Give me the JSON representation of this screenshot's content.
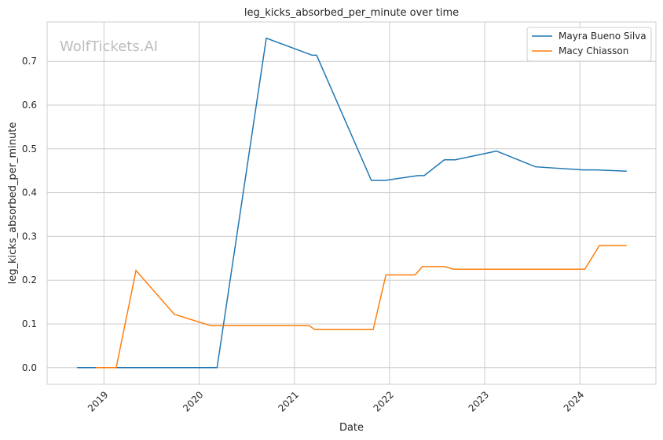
{
  "chart_data": {
    "type": "line",
    "title": "leg_kicks_absorbed_per_minute over time",
    "xlabel": "Date",
    "ylabel": "leg_kicks_absorbed_per_minute",
    "watermark": "WolfTickets.AI",
    "grid": true,
    "legend_position": "top-right",
    "x_range": [
      "2018-05-28",
      "2024-10-19"
    ],
    "ylim": [
      -0.038,
      0.79
    ],
    "x_ticks": [
      {
        "date": "2019-01-01",
        "label": "2019"
      },
      {
        "date": "2020-01-01",
        "label": "2020"
      },
      {
        "date": "2021-01-01",
        "label": "2021"
      },
      {
        "date": "2022-01-01",
        "label": "2022"
      },
      {
        "date": "2023-01-01",
        "label": "2023"
      },
      {
        "date": "2024-01-01",
        "label": "2024"
      }
    ],
    "y_ticks": [
      {
        "value": 0.0,
        "label": "0.0"
      },
      {
        "value": 0.1,
        "label": "0.1"
      },
      {
        "value": 0.2,
        "label": "0.2"
      },
      {
        "value": 0.3,
        "label": "0.3"
      },
      {
        "value": 0.4,
        "label": "0.4"
      },
      {
        "value": 0.5,
        "label": "0.5"
      },
      {
        "value": 0.6,
        "label": "0.6"
      },
      {
        "value": 0.7,
        "label": "0.7"
      }
    ],
    "series": [
      {
        "name": "Mayra Bueno Silva",
        "color": "#1f77b4",
        "points": [
          [
            "2018-09-20",
            0.0
          ],
          [
            "2020-03-10",
            0.0
          ],
          [
            "2020-09-15",
            0.753
          ],
          [
            "2021-03-10",
            0.714
          ],
          [
            "2021-03-27",
            0.714
          ],
          [
            "2021-10-23",
            0.428
          ],
          [
            "2021-12-15",
            0.428
          ],
          [
            "2022-04-20",
            0.439
          ],
          [
            "2022-05-14",
            0.439
          ],
          [
            "2022-07-30",
            0.475
          ],
          [
            "2022-09-10",
            0.475
          ],
          [
            "2023-02-15",
            0.495
          ],
          [
            "2023-07-15",
            0.459
          ],
          [
            "2024-01-13",
            0.452
          ],
          [
            "2024-03-01",
            0.452
          ],
          [
            "2024-06-29",
            0.449
          ]
        ]
      },
      {
        "name": "Macy Chiasson",
        "color": "#ff7f0e",
        "points": [
          [
            "2018-11-30",
            0.0
          ],
          [
            "2019-02-17",
            0.0
          ],
          [
            "2019-05-04",
            0.222
          ],
          [
            "2019-09-28",
            0.122
          ],
          [
            "2020-02-15",
            0.096
          ],
          [
            "2021-02-27",
            0.096
          ],
          [
            "2021-03-20",
            0.087
          ],
          [
            "2021-10-30",
            0.087
          ],
          [
            "2021-12-18",
            0.212
          ],
          [
            "2022-04-09",
            0.212
          ],
          [
            "2022-05-07",
            0.231
          ],
          [
            "2022-07-30",
            0.231
          ],
          [
            "2022-09-03",
            0.225
          ],
          [
            "2024-01-20",
            0.225
          ],
          [
            "2024-03-16",
            0.279
          ],
          [
            "2024-06-29",
            0.279
          ]
        ]
      }
    ]
  }
}
